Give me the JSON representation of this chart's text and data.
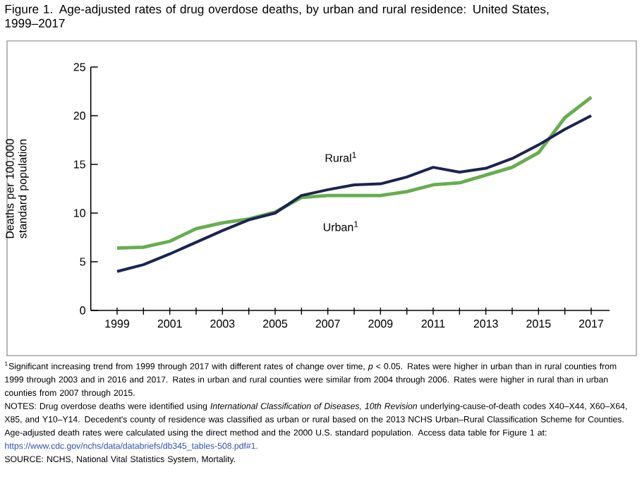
{
  "chart_data": {
    "type": "line",
    "title": "Figure 1. Age-adjusted rates of drug overdose deaths, by urban and rural residence: United States, 1999–2017",
    "ylabel": "Deaths per 100,000 standard population",
    "x": [
      1999,
      2000,
      2001,
      2002,
      2003,
      2004,
      2005,
      2006,
      2007,
      2008,
      2009,
      2010,
      2011,
      2012,
      2013,
      2014,
      2015,
      2016,
      2017
    ],
    "series": [
      {
        "name": "Urban$^{1}$",
        "color": "#67ad4f",
        "values": [
          6.4,
          6.5,
          7.1,
          8.4,
          9.0,
          9.4,
          10.1,
          11.6,
          11.8,
          11.8,
          11.8,
          12.2,
          12.9,
          13.1,
          13.9,
          14.7,
          16.2,
          19.8,
          21.9
        ]
      },
      {
        "name": "Rural$^{1}$",
        "color": "#1c2352",
        "values": [
          4.0,
          4.7,
          5.8,
          7.0,
          8.2,
          9.3,
          10.0,
          11.8,
          12.4,
          12.9,
          13.0,
          13.7,
          14.7,
          14.2,
          14.6,
          15.6,
          17.0,
          18.6,
          20.0
        ]
      }
    ],
    "xlim": [
      1998,
      2017.7
    ],
    "ylim": [
      0,
      25
    ],
    "xticks": [
      1999,
      {
        "value": 2000,
        "label": null
      },
      2001,
      {
        "value": 2002,
        "label": null
      },
      2003,
      {
        "value": 2004,
        "label": null
      },
      2005,
      {
        "value": 2006,
        "label": null
      },
      2007,
      {
        "value": 2008,
        "label": null
      },
      2009,
      {
        "value": 2010,
        "label": null
      },
      2011,
      {
        "value": 2012,
        "label": null
      },
      2013,
      {
        "value": 2014,
        "label": null
      },
      2015,
      {
        "value": 2016,
        "label": null
      },
      2017
    ],
    "yticks": [
      0,
      5,
      10,
      15,
      20,
      25
    ],
    "grid": false,
    "legend": false,
    "marker": "none",
    "line_style": "solid",
    "annotations": [
      "$^{1}$Significant increasing trend from 1999 through 2017 with different rates of change over time, *p* < 0.05. Rates were higher in urban than in rural counties from 1999 through 2003 and in 2016 and 2017. Rates in urban and rural counties were similar from 2004 through 2006. Rates were higher in rural than in urban counties from 2007 through 2015.",
      "NOTES: Drug overdose deaths were identified using *International Classification of Diseases, 10th Revision* underlying-cause-of-death codes X40–X44, X60–X64, X85, and Y10–Y14. Decedent's county of residence was classified as urban or rural based on the 2013 NCHS Urban–Rural Classification Scheme for Counties. Age-adjusted death rates were calculated using the direct method and the 2000 U.S. standard population. Access data table for Figure 1 at:",
      "https://www.cdc.gov/nchs/data/databriefs/db345_tables-508.pdf#1.",
      "SOURCE: NCHS, National Vital Statistics System, Mortality."
    ]
  }
}
